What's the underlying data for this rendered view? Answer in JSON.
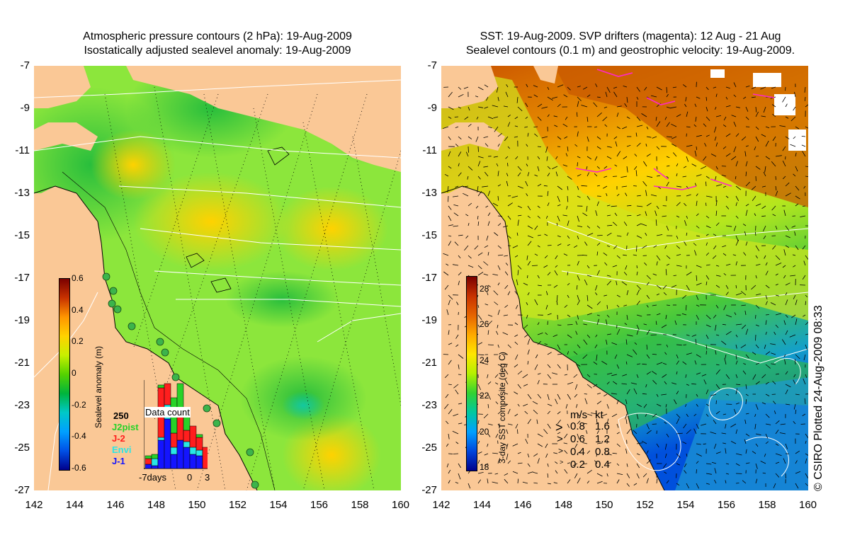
{
  "left": {
    "title_line1": "Atmospheric pressure contours (2 hPa): 19-Aug-2009",
    "title_line2": "Isostatically adjusted sealevel anomaly: 19-Aug-2009",
    "colorbar_title": "Sealevel anomaly (m)",
    "colorbar_ticks": [
      "0.6",
      "0.4",
      "0.2",
      "0",
      "-0.2",
      "-0.4",
      "-0.6"
    ],
    "colorbar_colors": [
      "#7a0000",
      "#c83200",
      "#ff9600",
      "#ffd200",
      "#c8f000",
      "#55d200",
      "#00b43c",
      "#00c8c8",
      "#00a0ff",
      "#0050e6",
      "#00008c"
    ],
    "data_count": {
      "title": "Data count",
      "max_label": "250",
      "legend": [
        {
          "name": "J2pist",
          "color": "#28d228"
        },
        {
          "name": "J-2",
          "color": "#ff1e1e"
        },
        {
          "name": "Envi",
          "color": "#28e6e6"
        },
        {
          "name": "J-1",
          "color": "#1414ff"
        }
      ],
      "xlabels": [
        "-7days",
        "0",
        "3"
      ]
    }
  },
  "right": {
    "title_line1": "SST: 19-Aug-2009. SVP drifters (magenta): 12 Aug - 21 Aug",
    "title_line2": "Sealevel contours (0.1 m) and geostrophic velocity: 19-Aug-2009.",
    "colorbar_title": "3-day SST composite (deg C)",
    "colorbar_ticks": [
      "28",
      "26",
      "24",
      "22",
      "20",
      "18"
    ],
    "colorbar_colors": [
      "#7a0000",
      "#c83200",
      "#e66400",
      "#ffaa00",
      "#ffe600",
      "#b4f000",
      "#32d232",
      "#00c8a0",
      "#00a0ff",
      "#0046dc",
      "#00008c"
    ],
    "velocity_legend": {
      "headers": [
        "m/s",
        "kt"
      ],
      "rows": [
        [
          "0.8",
          "1.6"
        ],
        [
          "0.6",
          "1.2"
        ],
        [
          "0.4",
          "0.8"
        ],
        [
          "0.2",
          "0.4"
        ]
      ]
    }
  },
  "axes": {
    "y_ticks": [
      "-7",
      "-9",
      "-11",
      "-13",
      "-15",
      "-17",
      "-19",
      "-21",
      "-23",
      "-25",
      "-27"
    ],
    "x_ticks": [
      "142",
      "144",
      "146",
      "148",
      "150",
      "152",
      "154",
      "156",
      "158",
      "160"
    ]
  },
  "copyright": "© CSIRO Plotted 24-Aug-2009 08:33",
  "colors": {
    "land": "#fac896",
    "sea_base_left": "#8ce63c",
    "sea_base_right": "#c8e61e",
    "white": "#ffffff"
  }
}
